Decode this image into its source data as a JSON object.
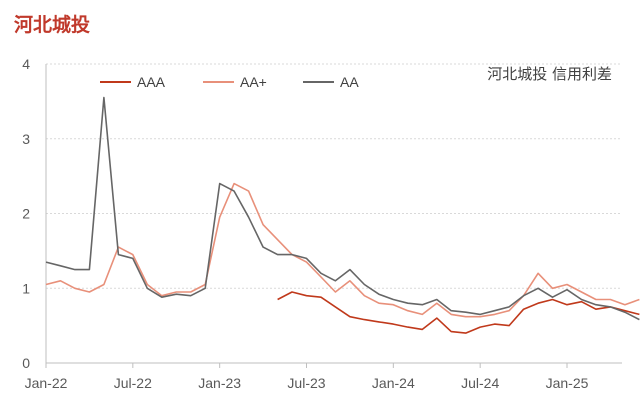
{
  "chart_data": {
    "type": "line",
    "title": "河北城投",
    "subtitle": "河北城投 信用利差",
    "ylim": [
      0,
      4
    ],
    "yticks": [
      "0",
      "1",
      "2",
      "3",
      "4"
    ],
    "xticks": [
      "Jan-22",
      "Jul-22",
      "Jan-23",
      "Jul-23",
      "Jan-24",
      "Jul-24",
      "Jan-25"
    ],
    "xtick_dates": [
      "2022-01",
      "2022-07",
      "2023-01",
      "2023-07",
      "2024-01",
      "2024-07",
      "2025-01"
    ],
    "legend_position": "top",
    "grid": "horizontal",
    "series": [
      {
        "name": "AAA",
        "color": "#c0391b",
        "points": [
          [
            "2023-05",
            0.85
          ],
          [
            "2023-06",
            0.95
          ],
          [
            "2023-07",
            0.9
          ],
          [
            "2023-08",
            0.88
          ],
          [
            "2023-09",
            0.75
          ],
          [
            "2023-10",
            0.62
          ],
          [
            "2023-11",
            0.58
          ],
          [
            "2023-12",
            0.55
          ],
          [
            "2024-01",
            0.52
          ],
          [
            "2024-02",
            0.48
          ],
          [
            "2024-03",
            0.45
          ],
          [
            "2024-04",
            0.6
          ],
          [
            "2024-05",
            0.42
          ],
          [
            "2024-06",
            0.4
          ],
          [
            "2024-07",
            0.48
          ],
          [
            "2024-08",
            0.52
          ],
          [
            "2024-09",
            0.5
          ],
          [
            "2024-10",
            0.72
          ],
          [
            "2024-11",
            0.8
          ],
          [
            "2024-12",
            0.85
          ],
          [
            "2025-01",
            0.78
          ],
          [
            "2025-02",
            0.82
          ],
          [
            "2025-03",
            0.72
          ],
          [
            "2025-04",
            0.75
          ],
          [
            "2025-05",
            0.7
          ],
          [
            "2025-06",
            0.65
          ]
        ]
      },
      {
        "name": "AA+",
        "color": "#e8907a",
        "points": [
          [
            "2022-01",
            1.05
          ],
          [
            "2022-02",
            1.1
          ],
          [
            "2022-03",
            1.0
          ],
          [
            "2022-04",
            0.95
          ],
          [
            "2022-05",
            1.05
          ],
          [
            "2022-06",
            1.55
          ],
          [
            "2022-07",
            1.45
          ],
          [
            "2022-08",
            1.05
          ],
          [
            "2022-09",
            0.9
          ],
          [
            "2022-10",
            0.95
          ],
          [
            "2022-11",
            0.95
          ],
          [
            "2022-12",
            1.05
          ],
          [
            "2023-01",
            1.95
          ],
          [
            "2023-02",
            2.4
          ],
          [
            "2023-03",
            2.3
          ],
          [
            "2023-04",
            1.85
          ],
          [
            "2023-05",
            1.65
          ],
          [
            "2023-06",
            1.45
          ],
          [
            "2023-07",
            1.35
          ],
          [
            "2023-08",
            1.15
          ],
          [
            "2023-09",
            0.95
          ],
          [
            "2023-10",
            1.1
          ],
          [
            "2023-11",
            0.9
          ],
          [
            "2023-12",
            0.8
          ],
          [
            "2024-01",
            0.78
          ],
          [
            "2024-02",
            0.7
          ],
          [
            "2024-03",
            0.65
          ],
          [
            "2024-04",
            0.8
          ],
          [
            "2024-05",
            0.65
          ],
          [
            "2024-06",
            0.62
          ],
          [
            "2024-07",
            0.62
          ],
          [
            "2024-08",
            0.65
          ],
          [
            "2024-09",
            0.7
          ],
          [
            "2024-10",
            0.9
          ],
          [
            "2024-11",
            1.2
          ],
          [
            "2024-12",
            1.0
          ],
          [
            "2025-01",
            1.05
          ],
          [
            "2025-02",
            0.95
          ],
          [
            "2025-03",
            0.85
          ],
          [
            "2025-04",
            0.85
          ],
          [
            "2025-05",
            0.78
          ],
          [
            "2025-06",
            0.85
          ]
        ]
      },
      {
        "name": "AA",
        "color": "#666666",
        "points": [
          [
            "2022-01",
            1.35
          ],
          [
            "2022-02",
            1.3
          ],
          [
            "2022-03",
            1.25
          ],
          [
            "2022-04",
            1.25
          ],
          [
            "2022-05",
            3.55
          ],
          [
            "2022-06",
            1.45
          ],
          [
            "2022-07",
            1.4
          ],
          [
            "2022-08",
            1.0
          ],
          [
            "2022-09",
            0.88
          ],
          [
            "2022-10",
            0.92
          ],
          [
            "2022-11",
            0.9
          ],
          [
            "2022-12",
            1.0
          ],
          [
            "2023-01",
            2.4
          ],
          [
            "2023-02",
            2.3
          ],
          [
            "2023-03",
            1.95
          ],
          [
            "2023-04",
            1.55
          ],
          [
            "2023-05",
            1.45
          ],
          [
            "2023-06",
            1.45
          ],
          [
            "2023-07",
            1.4
          ],
          [
            "2023-08",
            1.2
          ],
          [
            "2023-09",
            1.1
          ],
          [
            "2023-10",
            1.25
          ],
          [
            "2023-11",
            1.05
          ],
          [
            "2023-12",
            0.92
          ],
          [
            "2024-01",
            0.85
          ],
          [
            "2024-02",
            0.8
          ],
          [
            "2024-03",
            0.78
          ],
          [
            "2024-04",
            0.85
          ],
          [
            "2024-05",
            0.7
          ],
          [
            "2024-06",
            0.68
          ],
          [
            "2024-07",
            0.65
          ],
          [
            "2024-08",
            0.7
          ],
          [
            "2024-09",
            0.75
          ],
          [
            "2024-10",
            0.9
          ],
          [
            "2024-11",
            1.0
          ],
          [
            "2024-12",
            0.88
          ],
          [
            "2025-01",
            0.98
          ],
          [
            "2025-02",
            0.85
          ],
          [
            "2025-03",
            0.78
          ],
          [
            "2025-04",
            0.75
          ],
          [
            "2025-05",
            0.68
          ],
          [
            "2025-06",
            0.58
          ]
        ]
      }
    ]
  }
}
